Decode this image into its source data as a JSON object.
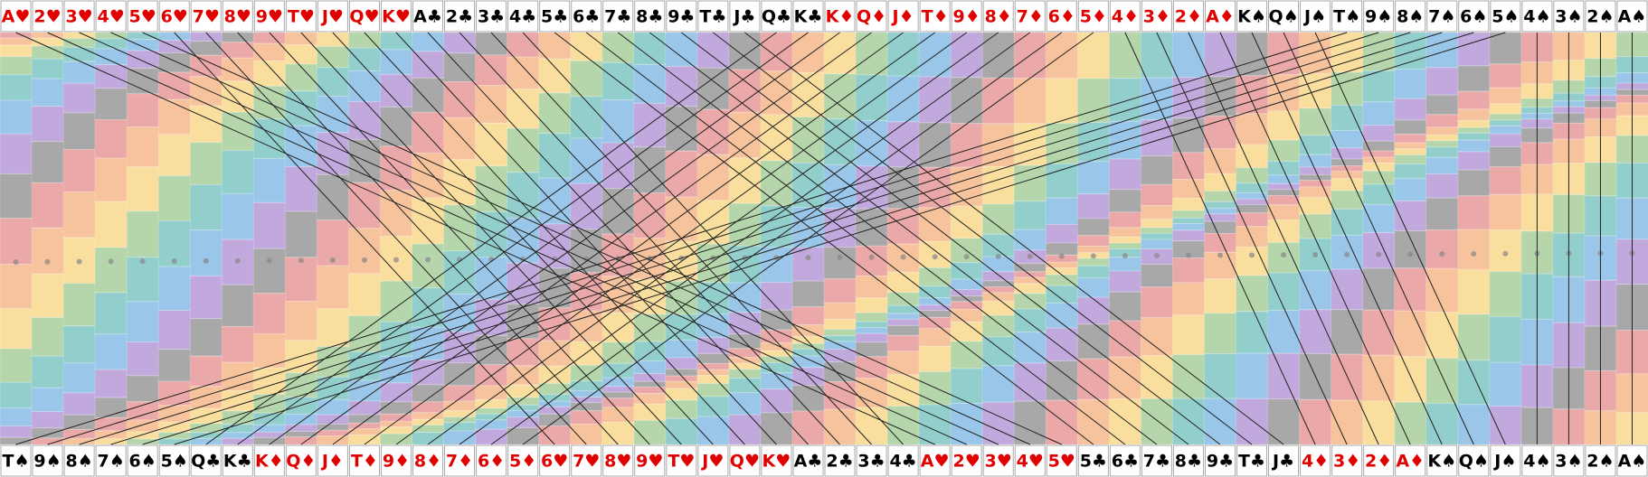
{
  "top_row": [
    {
      "label": "A♥",
      "color": "#e00000"
    },
    {
      "label": "2♥",
      "color": "#e00000"
    },
    {
      "label": "3♥",
      "color": "#e00000"
    },
    {
      "label": "4♥",
      "color": "#e00000"
    },
    {
      "label": "5♥",
      "color": "#e00000"
    },
    {
      "label": "6♥",
      "color": "#e00000"
    },
    {
      "label": "7♥",
      "color": "#e00000"
    },
    {
      "label": "8♥",
      "color": "#e00000"
    },
    {
      "label": "9♥",
      "color": "#e00000"
    },
    {
      "label": "T♥",
      "color": "#e00000"
    },
    {
      "label": "J♥",
      "color": "#e00000"
    },
    {
      "label": "Q♥",
      "color": "#e00000"
    },
    {
      "label": "K♥",
      "color": "#e00000"
    },
    {
      "label": "A♣",
      "color": "#000000"
    },
    {
      "label": "2♣",
      "color": "#000000"
    },
    {
      "label": "3♣",
      "color": "#000000"
    },
    {
      "label": "4♣",
      "color": "#000000"
    },
    {
      "label": "5♣",
      "color": "#000000"
    },
    {
      "label": "6♣",
      "color": "#000000"
    },
    {
      "label": "7♣",
      "color": "#000000"
    },
    {
      "label": "8♣",
      "color": "#000000"
    },
    {
      "label": "9♣",
      "color": "#000000"
    },
    {
      "label": "T♣",
      "color": "#000000"
    },
    {
      "label": "J♣",
      "color": "#000000"
    },
    {
      "label": "Q♣",
      "color": "#000000"
    },
    {
      "label": "K♣",
      "color": "#000000"
    },
    {
      "label": "K♦",
      "color": "#e00000"
    },
    {
      "label": "Q♦",
      "color": "#e00000"
    },
    {
      "label": "J♦",
      "color": "#e00000"
    },
    {
      "label": "T♦",
      "color": "#e00000"
    },
    {
      "label": "9♦",
      "color": "#e00000"
    },
    {
      "label": "8♦",
      "color": "#e00000"
    },
    {
      "label": "7♦",
      "color": "#e00000"
    },
    {
      "label": "6♦",
      "color": "#e00000"
    },
    {
      "label": "5♦",
      "color": "#e00000"
    },
    {
      "label": "4♦",
      "color": "#e00000"
    },
    {
      "label": "3♦",
      "color": "#e00000"
    },
    {
      "label": "2♦",
      "color": "#e00000"
    },
    {
      "label": "A♦",
      "color": "#e00000"
    },
    {
      "label": "K♠",
      "color": "#000000"
    },
    {
      "label": "Q♠",
      "color": "#000000"
    },
    {
      "label": "J♠",
      "color": "#000000"
    },
    {
      "label": "T♠",
      "color": "#000000"
    },
    {
      "label": "9♠",
      "color": "#000000"
    },
    {
      "label": "8♠",
      "color": "#000000"
    },
    {
      "label": "7♠",
      "color": "#000000"
    },
    {
      "label": "6♠",
      "color": "#000000"
    },
    {
      "label": "5♠",
      "color": "#000000"
    },
    {
      "label": "4♠",
      "color": "#000000"
    },
    {
      "label": "3♠",
      "color": "#000000"
    },
    {
      "label": "2♠",
      "color": "#000000"
    },
    {
      "label": "A♠",
      "color": "#000000"
    }
  ],
  "bottom_row": [
    {
      "label": "T♠",
      "color": "#000000"
    },
    {
      "label": "9♠",
      "color": "#000000"
    },
    {
      "label": "8♠",
      "color": "#000000"
    },
    {
      "label": "7♠",
      "color": "#000000"
    },
    {
      "label": "6♠",
      "color": "#000000"
    },
    {
      "label": "5♠",
      "color": "#000000"
    },
    {
      "label": "Q♣",
      "color": "#000000"
    },
    {
      "label": "K♣",
      "color": "#000000"
    },
    {
      "label": "K♦",
      "color": "#e00000"
    },
    {
      "label": "Q♦",
      "color": "#e00000"
    },
    {
      "label": "J♦",
      "color": "#e00000"
    },
    {
      "label": "T♦",
      "color": "#e00000"
    },
    {
      "label": "9♦",
      "color": "#e00000"
    },
    {
      "label": "8♦",
      "color": "#e00000"
    },
    {
      "label": "7♦",
      "color": "#e00000"
    },
    {
      "label": "6♦",
      "color": "#e00000"
    },
    {
      "label": "5♦",
      "color": "#e00000"
    },
    {
      "label": "6♥",
      "color": "#e00000"
    },
    {
      "label": "7♥",
      "color": "#e00000"
    },
    {
      "label": "8♥",
      "color": "#e00000"
    },
    {
      "label": "9♥",
      "color": "#e00000"
    },
    {
      "label": "T♥",
      "color": "#e00000"
    },
    {
      "label": "J♥",
      "color": "#e00000"
    },
    {
      "label": "Q♥",
      "color": "#e00000"
    },
    {
      "label": "K♥",
      "color": "#e00000"
    },
    {
      "label": "A♣",
      "color": "#000000"
    },
    {
      "label": "2♣",
      "color": "#000000"
    },
    {
      "label": "3♣",
      "color": "#000000"
    },
    {
      "label": "4♣",
      "color": "#000000"
    },
    {
      "label": "A♥",
      "color": "#e00000"
    },
    {
      "label": "2♥",
      "color": "#e00000"
    },
    {
      "label": "3♥",
      "color": "#e00000"
    },
    {
      "label": "4♥",
      "color": "#e00000"
    },
    {
      "label": "5♥",
      "color": "#e00000"
    },
    {
      "label": "5♣",
      "color": "#000000"
    },
    {
      "label": "6♣",
      "color": "#000000"
    },
    {
      "label": "7♣",
      "color": "#000000"
    },
    {
      "label": "8♣",
      "color": "#000000"
    },
    {
      "label": "9♣",
      "color": "#000000"
    },
    {
      "label": "T♣",
      "color": "#000000"
    },
    {
      "label": "J♣",
      "color": "#000000"
    },
    {
      "label": "4♦",
      "color": "#e00000"
    },
    {
      "label": "3♦",
      "color": "#e00000"
    },
    {
      "label": "2♦",
      "color": "#e00000"
    },
    {
      "label": "A♦",
      "color": "#e00000"
    },
    {
      "label": "K♠",
      "color": "#000000"
    },
    {
      "label": "Q♠",
      "color": "#000000"
    },
    {
      "label": "J♠",
      "color": "#000000"
    },
    {
      "label": "4♠",
      "color": "#000000"
    },
    {
      "label": "3♠",
      "color": "#000000"
    },
    {
      "label": "2♠",
      "color": "#000000"
    },
    {
      "label": "A♠",
      "color": "#000000"
    }
  ]
}
